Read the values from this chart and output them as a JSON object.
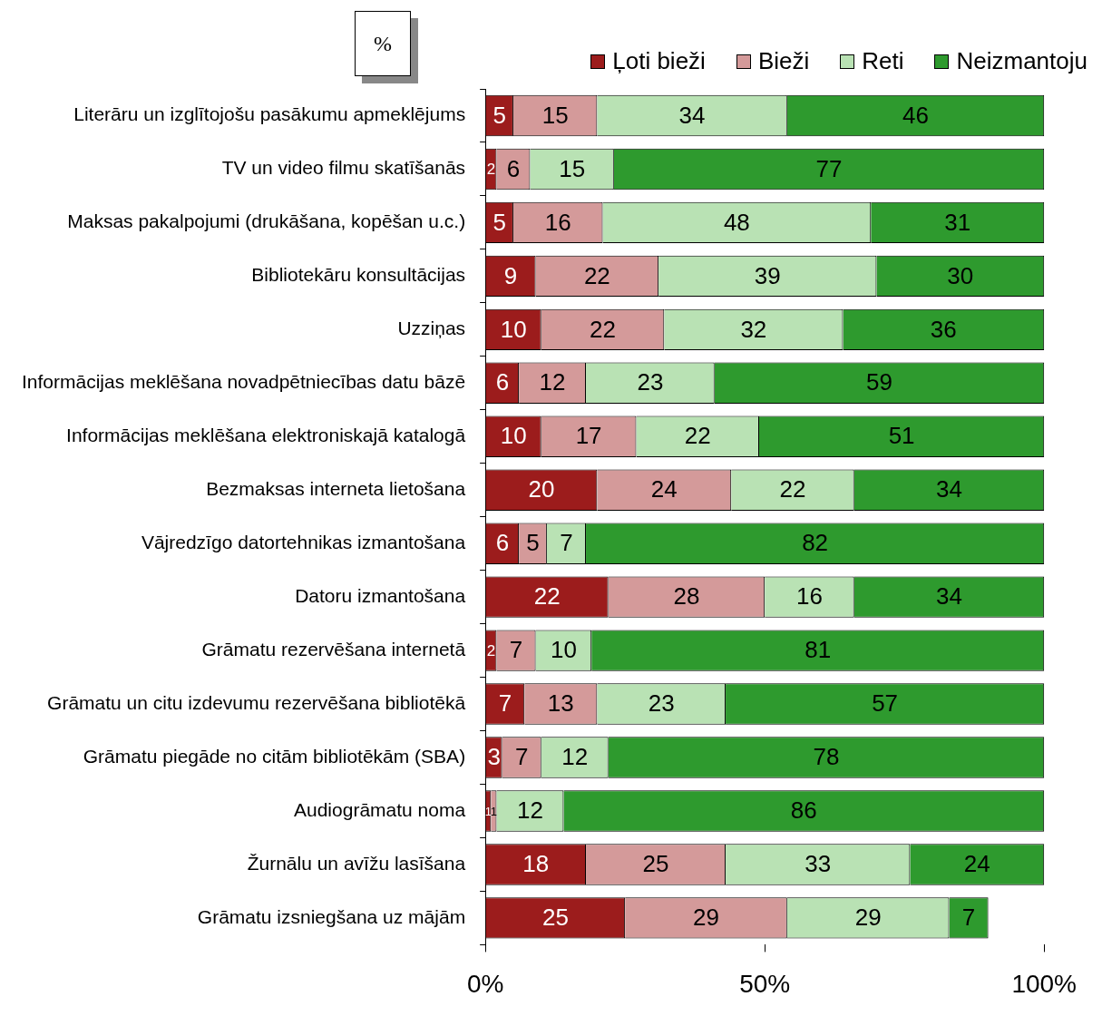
{
  "chart_data": {
    "type": "bar",
    "orientation": "horizontal",
    "stacked": true,
    "data_labels": true,
    "grid": false,
    "legend": "top right",
    "annotations": [
      "%"
    ],
    "categories": [
      "Literāru un izglītojošu pasākumu apmeklējums",
      "TV un video filmu skatīšanās",
      "Maksas pakalpojumi (drukāšana, kopēšan u.c.)",
      "Bibliotekāru konsultācijas",
      "Uzziņas",
      "Informācijas meklēšana novadpētniecības datu bāzē",
      "Informācijas meklēšana elektroniskajā katalogā",
      "Bezmaksas interneta lietošana",
      "Vājredzīgo datortehnikas izmantošana",
      "Datoru izmantošana",
      "Grāmatu rezervēšana internetā",
      "Grāmatu un citu izdevumu rezervēšana bibliotēkā",
      "Grāmatu piegāde no citām bibliotēkām (SBA)",
      "Audiogrāmatu noma",
      "Žurnālu un avīžu lasīšana",
      "Grāmatu izsniegšana uz mājām"
    ],
    "xlim": [
      0,
      100
    ],
    "xticks": [
      {
        "value": 0,
        "label": "0%"
      },
      {
        "value": 50,
        "label": "50%"
      },
      {
        "value": 100,
        "label": "100%"
      }
    ],
    "series": [
      {
        "name": "Ļoti bieži",
        "color": "#9c1c1c",
        "values": [
          5,
          2,
          5,
          9,
          10,
          6,
          10,
          20,
          6,
          22,
          2,
          7,
          3,
          1,
          18,
          25
        ]
      },
      {
        "name": "Bieži",
        "color": "#d49a9a",
        "values": [
          15,
          6,
          16,
          22,
          22,
          12,
          17,
          24,
          5,
          28,
          7,
          13,
          7,
          1,
          25,
          29
        ]
      },
      {
        "name": "Reti",
        "color": "#b9e2b4",
        "values": [
          34,
          15,
          48,
          39,
          32,
          23,
          22,
          22,
          7,
          16,
          10,
          23,
          12,
          12,
          33,
          29
        ]
      },
      {
        "name": "Neizmantoju",
        "color": "#2e9a2e",
        "values": [
          46,
          77,
          31,
          30,
          36,
          59,
          51,
          34,
          82,
          34,
          81,
          57,
          78,
          86,
          24,
          7
        ]
      }
    ]
  }
}
